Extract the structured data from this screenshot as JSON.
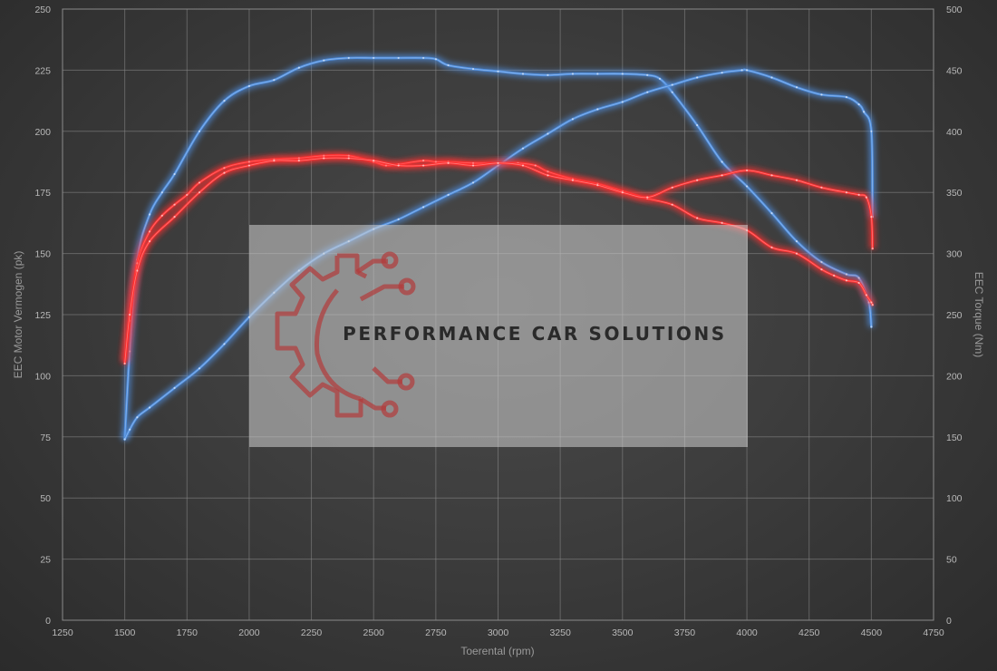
{
  "chart_data": {
    "type": "line",
    "title": "",
    "xlabel": "Toerental (rpm)",
    "ylabel_left": "EEC Motor Vermogen (pk)",
    "ylabel_right": "EEC Torque (Nm)",
    "xlim": [
      1250,
      4750
    ],
    "ylim_left": [
      0,
      250
    ],
    "ylim_right": [
      0,
      500
    ],
    "x_ticks": [
      1250,
      1500,
      1750,
      2000,
      2250,
      2500,
      2750,
      3000,
      3250,
      3500,
      3750,
      4000,
      4250,
      4500,
      4750
    ],
    "y_left_ticks": [
      0,
      25,
      50,
      75,
      100,
      125,
      150,
      175,
      200,
      225,
      250
    ],
    "y_right_ticks": [
      0,
      50,
      100,
      150,
      200,
      250,
      300,
      350,
      400,
      450,
      500
    ],
    "grid": true,
    "series": [
      {
        "color": "#4f8fe0",
        "axis": "right",
        "x": [
          1500,
          1520,
          1550,
          1600,
          1650,
          1700,
          1800,
          1900,
          2000,
          2100,
          2200,
          2300,
          2400,
          2500,
          2600,
          2700,
          2750,
          2800,
          2900,
          3000,
          3100,
          3200,
          3300,
          3400,
          3500,
          3600,
          3650,
          3700,
          3800,
          3900,
          4000,
          4100,
          4200,
          4300,
          4400,
          4450,
          4490,
          4500
        ],
        "y": [
          148,
          220,
          295,
          332,
          350,
          365,
          400,
          425,
          437,
          442,
          452,
          458,
          460,
          460,
          460,
          460,
          459,
          454,
          451,
          449,
          447,
          446,
          447,
          447,
          447,
          446,
          443,
          432,
          405,
          375,
          355,
          333,
          310,
          293,
          283,
          280,
          260,
          240
        ]
      },
      {
        "color": "#ff3030",
        "axis": "right",
        "x": [
          1500,
          1520,
          1550,
          1600,
          1650,
          1700,
          1750,
          1800,
          1900,
          2000,
          2100,
          2200,
          2300,
          2400,
          2500,
          2550,
          2600,
          2700,
          2750,
          2800,
          2900,
          3000,
          3080,
          3150,
          3200,
          3300,
          3400,
          3500,
          3600,
          3700,
          3800,
          3900,
          4000,
          4100,
          4200,
          4300,
          4350,
          4400,
          4450,
          4480,
          4500,
          4505
        ],
        "y": [
          212,
          245,
          292,
          318,
          331,
          340,
          348,
          358,
          370,
          375,
          377,
          378,
          380,
          380,
          375,
          372,
          373,
          376,
          375,
          375,
          374,
          374,
          374,
          372,
          367,
          361,
          357,
          351,
          345,
          340,
          329,
          325,
          319,
          305,
          300,
          287,
          282,
          278,
          276,
          266,
          260,
          258
        ]
      },
      {
        "color": "#4f8fe0",
        "axis": "left",
        "x": [
          1500,
          1520,
          1550,
          1600,
          1700,
          1800,
          1900,
          2000,
          2100,
          2200,
          2300,
          2400,
          2500,
          2600,
          2700,
          2800,
          2900,
          3000,
          3100,
          3200,
          3300,
          3400,
          3500,
          3600,
          3700,
          3800,
          3900,
          3980,
          4000,
          4100,
          4200,
          4300,
          4400,
          4450,
          4470,
          4500,
          4505
        ],
        "y": [
          74,
          78,
          83,
          87,
          95,
          103,
          113,
          124,
          134,
          143,
          150,
          155,
          160,
          164,
          169,
          174,
          179,
          186,
          193,
          199,
          205,
          209,
          212,
          216,
          219,
          222,
          224,
          225,
          225,
          222,
          218,
          215,
          214,
          211,
          208,
          200,
          165
        ]
      },
      {
        "color": "#ff3030",
        "axis": "left",
        "x": [
          1500,
          1520,
          1550,
          1600,
          1700,
          1800,
          1900,
          2000,
          2100,
          2200,
          2300,
          2400,
          2500,
          2600,
          2700,
          2800,
          2900,
          3000,
          3100,
          3200,
          3300,
          3400,
          3500,
          3600,
          3700,
          3800,
          3900,
          4000,
          4100,
          4200,
          4300,
          4400,
          4450,
          4480,
          4500,
          4505
        ],
        "y": [
          105,
          125,
          143,
          155,
          165,
          175,
          183,
          186,
          188,
          188,
          189,
          189,
          188,
          186,
          186,
          187,
          186,
          187,
          186,
          182,
          180,
          178,
          175,
          173,
          177,
          180,
          182,
          184,
          182,
          180,
          177,
          175,
          174,
          173,
          165,
          152
        ]
      }
    ]
  },
  "watermark": {
    "text": "PERFORMANCE CAR SOLUTIONS"
  }
}
